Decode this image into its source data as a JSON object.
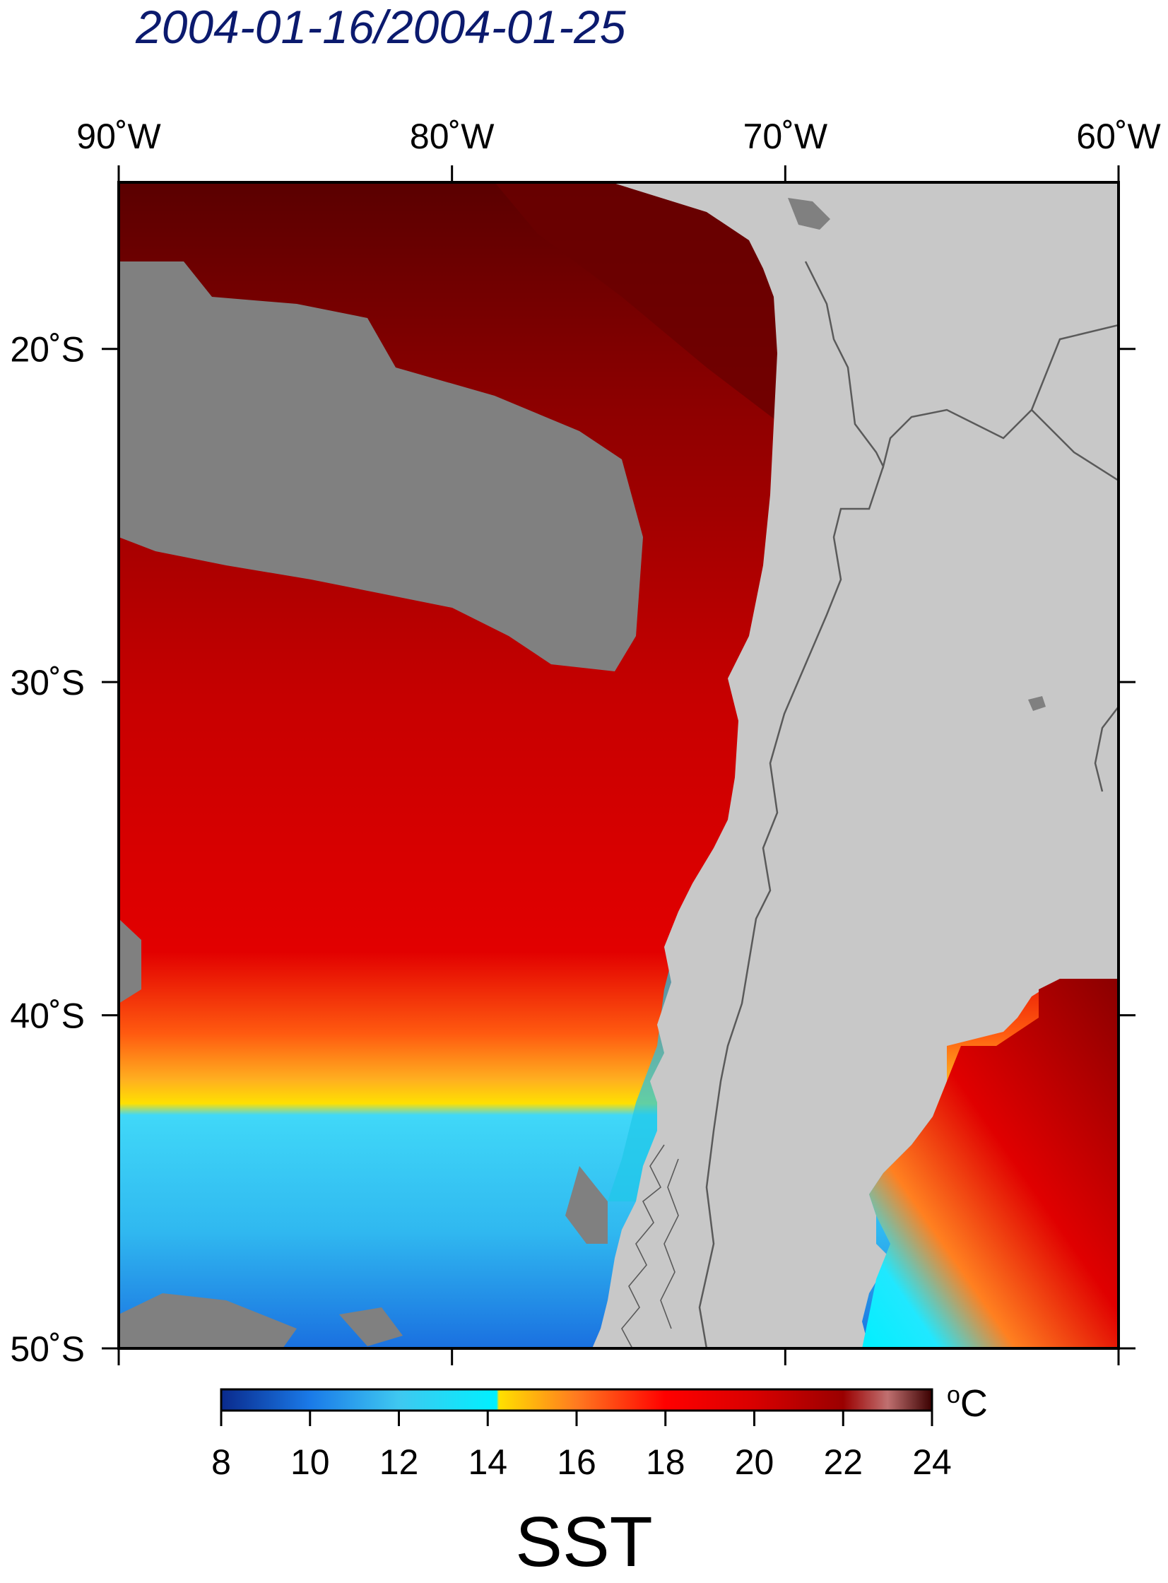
{
  "title": "2004-01-16/2004-01-25",
  "variable": "SST",
  "unit_main": "C",
  "unit_super": "o",
  "map": {
    "lon_range": [
      -90,
      -60
    ],
    "lat_range": [
      -50,
      -15
    ],
    "x_ticks": [
      {
        "value": -90,
        "label": "90˚W"
      },
      {
        "value": -80,
        "label": "80˚W"
      },
      {
        "value": -70,
        "label": "70˚W"
      },
      {
        "value": -60,
        "label": "60˚W"
      }
    ],
    "y_ticks": [
      {
        "value": -20,
        "label": "20˚S"
      },
      {
        "value": -30,
        "label": "30˚S"
      },
      {
        "value": -40,
        "label": "40˚S"
      },
      {
        "value": -50,
        "label": "50˚S"
      }
    ],
    "colors": {
      "land": "#c8c8c8",
      "cloud_nodata": "#808080",
      "border": "#5a5a5a"
    }
  },
  "colorbar": {
    "min": 8,
    "max": 24,
    "ticks": [
      "8",
      "10",
      "12",
      "14",
      "16",
      "18",
      "20",
      "22",
      "24"
    ],
    "stops": [
      {
        "value": 8,
        "color": "#0a2a8c"
      },
      {
        "value": 10,
        "color": "#1a7ae8"
      },
      {
        "value": 12,
        "color": "#3fc8f0"
      },
      {
        "value": 14.2,
        "color": "#00f0ff"
      },
      {
        "value": 14.25,
        "color": "#ffe000"
      },
      {
        "value": 16,
        "color": "#ff7a20"
      },
      {
        "value": 18,
        "color": "#ff0000"
      },
      {
        "value": 20,
        "color": "#d80000"
      },
      {
        "value": 22,
        "color": "#9a0000"
      },
      {
        "value": 23,
        "color": "#c07070"
      },
      {
        "value": 24,
        "color": "#3a0000"
      }
    ]
  }
}
